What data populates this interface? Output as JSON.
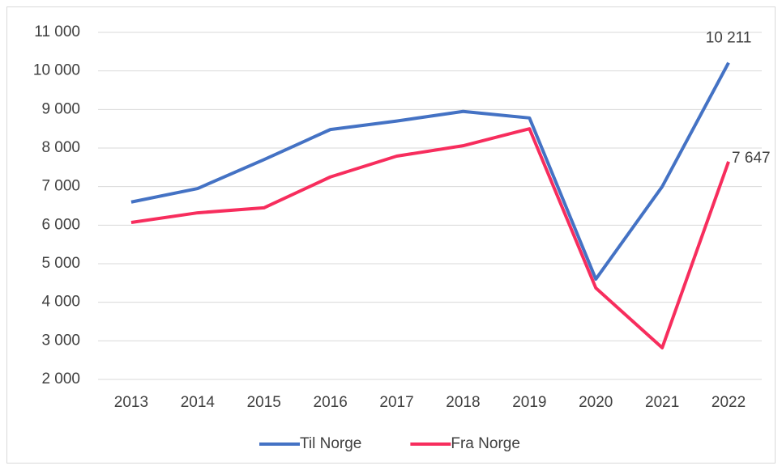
{
  "chart_data": {
    "type": "line",
    "categories": [
      "2013",
      "2014",
      "2015",
      "2016",
      "2017",
      "2018",
      "2019",
      "2020",
      "2021",
      "2022"
    ],
    "series": [
      {
        "name": "Til Norge",
        "color": "#4472c4",
        "values": [
          6600,
          6950,
          7700,
          8480,
          8700,
          8950,
          8780,
          4600,
          7000,
          10211
        ],
        "value_labels": [
          null,
          null,
          null,
          null,
          null,
          null,
          null,
          null,
          null,
          "10 211"
        ]
      },
      {
        "name": "Fra Norge",
        "color": "#f72d5d",
        "values": [
          6070,
          6320,
          6450,
          7250,
          7790,
          8060,
          8500,
          4370,
          2820,
          7647
        ],
        "value_labels": [
          null,
          null,
          null,
          null,
          null,
          null,
          null,
          null,
          null,
          "7 647"
        ]
      }
    ],
    "ylim": [
      2000,
      11000
    ],
    "yticks": [
      {
        "value": 2000,
        "label": "2 000"
      },
      {
        "value": 3000,
        "label": "3 000"
      },
      {
        "value": 4000,
        "label": "4 000"
      },
      {
        "value": 5000,
        "label": "5 000"
      },
      {
        "value": 6000,
        "label": "6 000"
      },
      {
        "value": 7000,
        "label": "7 000"
      },
      {
        "value": 8000,
        "label": "8 000"
      },
      {
        "value": 9000,
        "label": "9 000"
      },
      {
        "value": 10000,
        "label": "10 000"
      },
      {
        "value": 11000,
        "label": "11 000"
      }
    ],
    "grid": true,
    "legend": "bottom"
  }
}
